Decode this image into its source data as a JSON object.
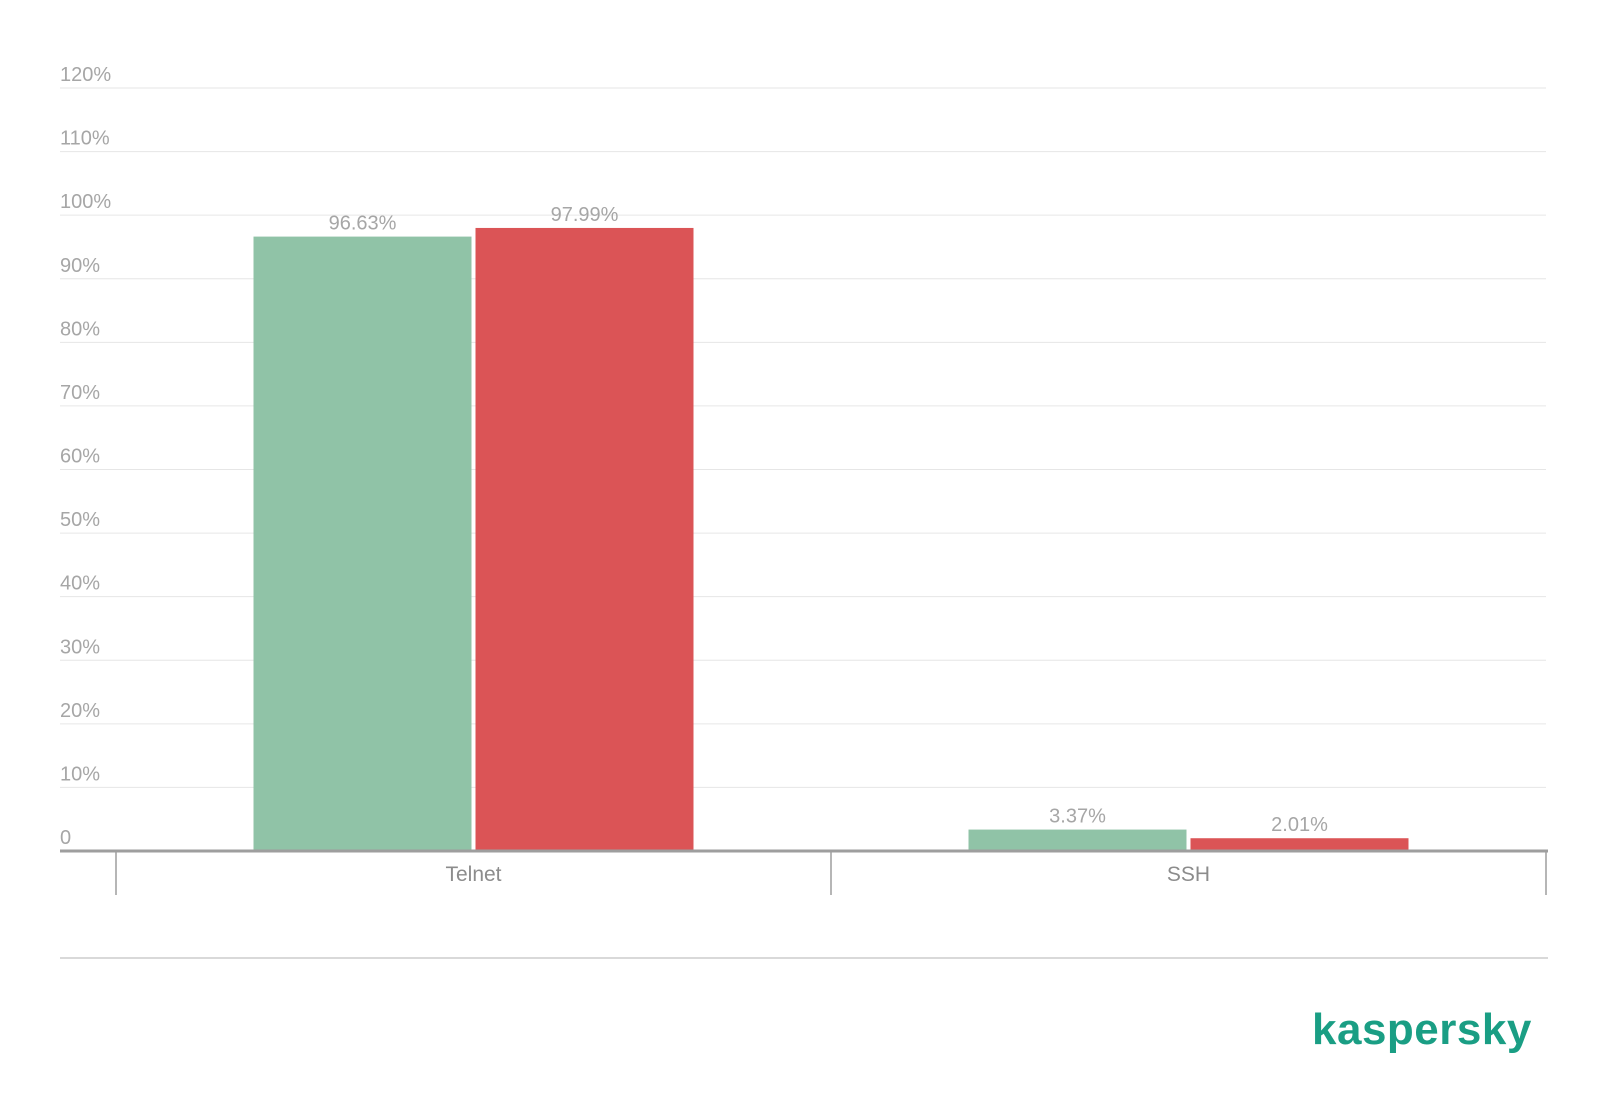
{
  "chart_data": {
    "type": "bar",
    "title": "",
    "xlabel": "",
    "ylabel": "",
    "categories": [
      "Telnet",
      "SSH"
    ],
    "series": [
      {
        "values": [
          96.63,
          3.37
        ],
        "color": "#90c3a7"
      },
      {
        "values": [
          97.99,
          2.01
        ],
        "color": "#db5456"
      }
    ],
    "data_labels": [
      [
        "96.63%",
        "3.37%"
      ],
      [
        "97.99%",
        "2.01%"
      ]
    ],
    "ylim": [
      0,
      120
    ],
    "yticks": [
      0,
      10,
      20,
      30,
      40,
      50,
      60,
      70,
      80,
      90,
      100,
      110,
      120
    ],
    "ytick_labels": [
      "0",
      "10%",
      "20%",
      "30%",
      "40%",
      "50%",
      "60%",
      "70%",
      "80%",
      "90%",
      "100%",
      "110%",
      "120%"
    ],
    "grid": true,
    "legend": "none"
  },
  "branding": {
    "logo_text": "kaspersky",
    "logo_color": "#1a9e84"
  }
}
